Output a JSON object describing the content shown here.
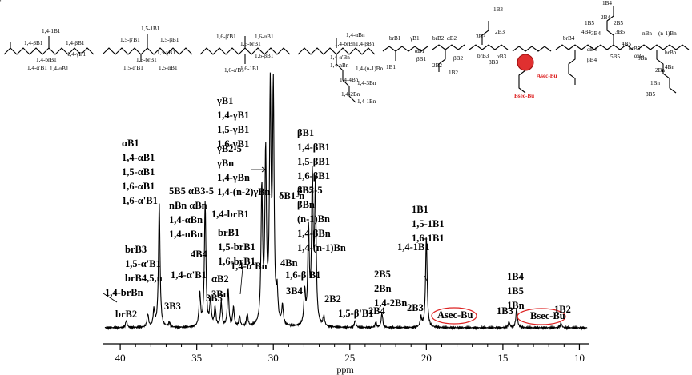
{
  "chart_data": {
    "type": "line",
    "title": "",
    "xlabel": "ppm",
    "ylabel": "",
    "xlim": [
      41,
      9.5
    ],
    "x_reversed": true,
    "xticks": [
      40,
      35,
      30,
      25,
      20,
      15,
      10
    ],
    "grid": false,
    "legend": "none",
    "color": "#000000",
    "peaks": [
      {
        "x": 39.6,
        "y": 0.03
      },
      {
        "x": 38.2,
        "y": 0.055
      },
      {
        "x": 37.8,
        "y": 0.07
      },
      {
        "x": 37.45,
        "y": 0.52
      },
      {
        "x": 36.8,
        "y": 0.02
      },
      {
        "x": 34.8,
        "y": 0.14
      },
      {
        "x": 34.45,
        "y": 0.52
      },
      {
        "x": 34.1,
        "y": 0.11
      },
      {
        "x": 33.8,
        "y": 0.08
      },
      {
        "x": 33.4,
        "y": 0.1
      },
      {
        "x": 32.95,
        "y": 0.16
      },
      {
        "x": 32.6,
        "y": 0.08
      },
      {
        "x": 32.2,
        "y": 0.04
      },
      {
        "x": 31.7,
        "y": 0.05
      },
      {
        "x": 30.75,
        "y": 0.56
      },
      {
        "x": 30.5,
        "y": 0.7
      },
      {
        "x": 30.2,
        "y": 0.95
      },
      {
        "x": 30.0,
        "y": 0.96
      },
      {
        "x": 29.75,
        "y": 0.12
      },
      {
        "x": 29.4,
        "y": 0.08
      },
      {
        "x": 27.95,
        "y": 0.14
      },
      {
        "x": 27.7,
        "y": 0.39
      },
      {
        "x": 27.45,
        "y": 0.61
      },
      {
        "x": 27.25,
        "y": 0.57
      },
      {
        "x": 26.7,
        "y": 0.04
      },
      {
        "x": 24.65,
        "y": 0.03
      },
      {
        "x": 23.3,
        "y": 0.02
      },
      {
        "x": 22.9,
        "y": 0.06
      },
      {
        "x": 20.35,
        "y": 0.04
      },
      {
        "x": 20.0,
        "y": 0.38
      },
      {
        "x": 14.6,
        "y": 0.025
      },
      {
        "x": 14.1,
        "y": 0.08
      },
      {
        "x": 11.2,
        "y": 0.02
      }
    ],
    "annotations": [
      {
        "lines": [
          "αB1",
          "1,4-αB1",
          "1,5-αB1",
          "1,6-αB1",
          "1,6-α'B1"
        ],
        "x": 37.4
      },
      {
        "lines": [
          "γB1",
          "1,4-γB1",
          "1,5-γB1",
          "1,6-γB1"
        ],
        "x": 30.1
      },
      {
        "lines": [
          "γB2-5",
          "γBn",
          "1,4-γBn",
          "1,4-(n-2)γBn"
        ],
        "x": 30.5
      },
      {
        "lines": [
          "βB1",
          "1,4-βB1",
          "1,5-βB1",
          "1,6-βB1",
          "4B5"
        ],
        "x": 27.5
      },
      {
        "lines": [
          "δB1-n"
        ],
        "x": 29.9
      },
      {
        "lines": [
          "5B5 αB3-5",
          "nBn αBn",
          "1,4-αBn",
          "1,4-nBn"
        ],
        "x": 34.4
      },
      {
        "lines": [
          "1,4-brB1"
        ],
        "x": 33.8
      },
      {
        "lines": [
          "brB1",
          "1,5-brB1",
          "1,6-brB1"
        ],
        "x": 33.4
      },
      {
        "lines": [
          "βB2-5",
          "βBn",
          "(n-1)Bn",
          "1,4-βBn",
          "1,4-(n-1)Bn"
        ],
        "x": 27.3
      },
      {
        "lines": [
          "brB3",
          "1,5-α'B1",
          "brB4,5,n"
        ],
        "x": 38.2
      },
      {
        "lines": [
          "4B4"
        ],
        "x": 34.8
      },
      {
        "lines": [
          "1,4-α'B1"
        ],
        "x": 34.8
      },
      {
        "lines": [
          "αB2"
        ],
        "x": 33.9
      },
      {
        "lines": [
          "3B5"
        ],
        "x": 32.95
      },
      {
        "lines": [
          "3Bn"
        ],
        "x": 32.2
      },
      {
        "lines": [
          "1,4-α'Bn"
        ],
        "x": 31.7
      },
      {
        "lines": [
          "4Bn"
        ],
        "x": 29.75
      },
      {
        "lines": [
          "1,6-β'B1"
        ],
        "x": 29.4
      },
      {
        "lines": [
          "3B4"
        ],
        "x": 27.95
      },
      {
        "lines": [
          "1,4-brBn"
        ],
        "x": 37.8
      },
      {
        "lines": [
          "brB2"
        ],
        "x": 39.6
      },
      {
        "lines": [
          "3B3"
        ],
        "x": 36.8
      },
      {
        "lines": [
          "2B2"
        ],
        "x": 26.7
      },
      {
        "lines": [
          "1,5-β'B1"
        ],
        "x": 24.65
      },
      {
        "lines": [
          "2B4"
        ],
        "x": 23.3
      },
      {
        "lines": [
          "2B5",
          "2Bn",
          "1,4-2Bn"
        ],
        "x": 22.9
      },
      {
        "lines": [
          "2B3"
        ],
        "x": 20.35
      },
      {
        "lines": [
          "1B1",
          "1,5-1B1",
          "1,6-1B1"
        ],
        "x": 20.0
      },
      {
        "lines": [
          "1,4-1B1"
        ],
        "x": 20.0
      },
      {
        "lines": [
          "1B3"
        ],
        "x": 14.6
      },
      {
        "lines": [
          "1B4",
          "1B5",
          "1Bn"
        ],
        "x": 14.1
      },
      {
        "lines": [
          "1B2"
        ],
        "x": 11.2
      },
      {
        "lines": [
          "Asec-Bu"
        ],
        "x": 18.6
      },
      {
        "lines": [
          "Bsec-Bu"
        ],
        "x": 12.2
      }
    ]
  },
  "structure_labels": [
    "1,4-1B1",
    "1,4-βB1",
    "1,4-βB1",
    "1,4-γB1",
    "1,4-α'B1",
    "1,4-brB1",
    "1,4-αB1",
    "1,5-1B1",
    "1,5-β'B1",
    "1,5-βB1",
    "1,5-brB1",
    "1,5-γB1",
    "1,5-α'B1",
    "1,5-αB1",
    "1,6-β'B1",
    "1,6-αB1",
    "1,6-brB1",
    "1,6-βB1",
    "1,6-α'B1",
    "1,6-1B1",
    "1,4-αBn",
    "1,4-brBn",
    "1,4-βBn",
    "1,4-α'Bn",
    "1,4-nBn",
    "1,4-(n-1)Bn",
    "1,4-4Bn",
    "1,4-3Bn",
    "1,4-2Bn",
    "1,4-1Bn",
    "brB1",
    "γB1",
    "βB1",
    "αB1",
    "1B1",
    "brB2",
    "αB2",
    "βB2",
    "2B2",
    "1B2",
    "1B3",
    "2B3",
    "3B3",
    "brB3",
    "αB3",
    "βB3",
    "Asec-Bu",
    "Bsec-Bu",
    "1B4",
    "2B4",
    "3B4",
    "4B4",
    "brB4",
    "αB4",
    "βB4",
    "1B5",
    "2B5",
    "3B5",
    "4B5",
    "5B5",
    "brB5",
    "αB5",
    "βB5",
    "1Bn",
    "2Bn",
    "3Bn",
    "4Bn",
    "nBn",
    "(n-1)Bn",
    "brBn",
    "αBn",
    "βBn"
  ]
}
